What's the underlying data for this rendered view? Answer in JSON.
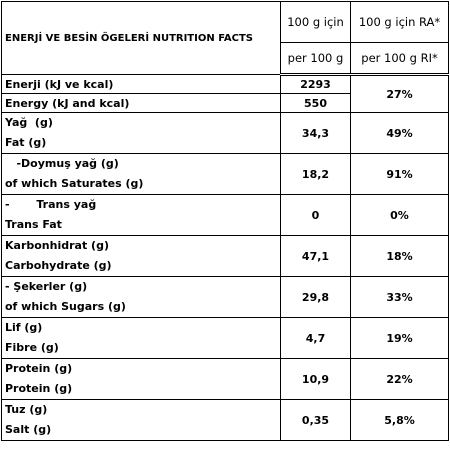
{
  "header": {
    "title": "ENERJİ VE BESİN ÖGELERİ NUTRITION FACTS",
    "per100": [
      "100 g için",
      "per 100 g"
    ],
    "ri": [
      "100 g için RA*",
      "per 100 g RI*"
    ]
  },
  "rows": [
    {
      "labels": [
        "Enerji (kJ ve kcal)",
        "Energy (kJ and kcal)"
      ],
      "values": [
        "2293",
        "550"
      ],
      "ri": "27%"
    },
    {
      "labels": [
        "Yağ  (g)",
        "Fat (g)"
      ],
      "values": [
        "34,3"
      ],
      "ri": "49%"
    },
    {
      "labels": [
        "   -Doymuş yağ (g)",
        "of which Saturates (g)"
      ],
      "values": [
        "18,2"
      ],
      "ri": "91%"
    },
    {
      "labels": [
        "-       Trans yağ",
        "Trans Fat"
      ],
      "values": [
        "0"
      ],
      "ri": "0%"
    },
    {
      "labels": [
        "Karbonhidrat (g)",
        "Carbohydrate (g)"
      ],
      "values": [
        "47,1"
      ],
      "ri": "18%"
    },
    {
      "labels": [
        "- Şekerler (g)",
        "of which Sugars (g)"
      ],
      "values": [
        "29,8"
      ],
      "ri": "33%"
    },
    {
      "labels": [
        "Lif (g)",
        "Fibre (g)"
      ],
      "values": [
        "4,7"
      ],
      "ri": "19%"
    },
    {
      "labels": [
        "Protein (g)",
        "Protein (g)"
      ],
      "values": [
        "10,9"
      ],
      "ri": "22%"
    },
    {
      "labels": [
        "Tuz (g)",
        "Salt (g)"
      ],
      "values": [
        "0,35"
      ],
      "ri": "5,8%"
    }
  ]
}
